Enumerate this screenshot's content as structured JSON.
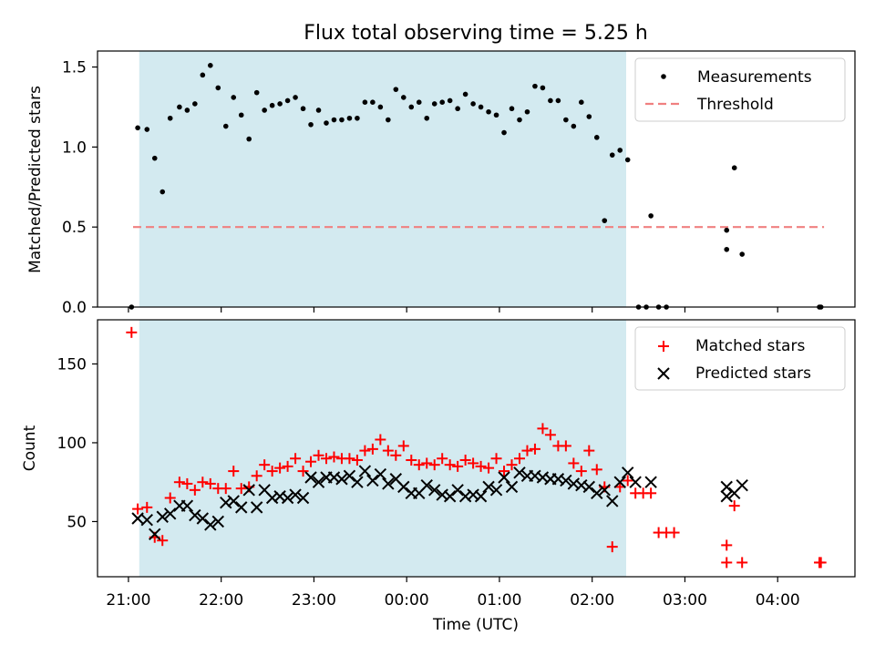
{
  "chart_data": [
    {
      "type": "scatter",
      "title": "Flux total observing time = 5.25 h",
      "xlabel": "",
      "ylabel": "Matched/Predicted stars",
      "xlim": [
        "20:40",
        "04:50"
      ],
      "ylim": [
        0,
        1.6
      ],
      "yticks": [
        0.0,
        0.5,
        1.0,
        1.5
      ],
      "ytick_labels": [
        "0.0",
        "0.5",
        "1.0",
        "1.5"
      ],
      "shaded_span": [
        "21:07",
        "02:22"
      ],
      "shaded_color": "#d3eaf0",
      "legend_position": "top-right",
      "threshold": {
        "name": "Threshold",
        "value": 0.5,
        "x_range": [
          "21:03",
          "04:30"
        ],
        "color": "#f08080",
        "style": "dashed"
      },
      "series": [
        {
          "name": "Measurements",
          "marker": "dot",
          "color": "#000000",
          "points": [
            [
              "21:02",
              0.0
            ],
            [
              "21:06",
              1.12
            ],
            [
              "21:12",
              1.11
            ],
            [
              "21:17",
              0.93
            ],
            [
              "21:22",
              0.72
            ],
            [
              "21:27",
              1.18
            ],
            [
              "21:33",
              1.25
            ],
            [
              "21:38",
              1.23
            ],
            [
              "21:43",
              1.27
            ],
            [
              "21:48",
              1.45
            ],
            [
              "21:53",
              1.51
            ],
            [
              "21:58",
              1.37
            ],
            [
              "22:03",
              1.13
            ],
            [
              "22:08",
              1.31
            ],
            [
              "22:13",
              1.2
            ],
            [
              "22:18",
              1.05
            ],
            [
              "22:23",
              1.34
            ],
            [
              "22:28",
              1.23
            ],
            [
              "22:33",
              1.26
            ],
            [
              "22:38",
              1.27
            ],
            [
              "22:43",
              1.29
            ],
            [
              "22:48",
              1.31
            ],
            [
              "22:53",
              1.24
            ],
            [
              "22:58",
              1.14
            ],
            [
              "23:03",
              1.23
            ],
            [
              "23:08",
              1.15
            ],
            [
              "23:13",
              1.17
            ],
            [
              "23:18",
              1.17
            ],
            [
              "23:23",
              1.18
            ],
            [
              "23:28",
              1.18
            ],
            [
              "23:33",
              1.28
            ],
            [
              "23:38",
              1.28
            ],
            [
              "23:43",
              1.25
            ],
            [
              "23:48",
              1.17
            ],
            [
              "23:53",
              1.36
            ],
            [
              "23:58",
              1.31
            ],
            [
              "00:03",
              1.25
            ],
            [
              "00:08",
              1.28
            ],
            [
              "00:13",
              1.18
            ],
            [
              "00:18",
              1.27
            ],
            [
              "00:23",
              1.28
            ],
            [
              "00:28",
              1.29
            ],
            [
              "00:33",
              1.24
            ],
            [
              "00:38",
              1.33
            ],
            [
              "00:43",
              1.27
            ],
            [
              "00:48",
              1.25
            ],
            [
              "00:53",
              1.22
            ],
            [
              "00:58",
              1.2
            ],
            [
              "01:03",
              1.09
            ],
            [
              "01:08",
              1.24
            ],
            [
              "01:13",
              1.17
            ],
            [
              "01:18",
              1.22
            ],
            [
              "01:23",
              1.38
            ],
            [
              "01:28",
              1.37
            ],
            [
              "01:33",
              1.29
            ],
            [
              "01:38",
              1.29
            ],
            [
              "01:43",
              1.17
            ],
            [
              "01:48",
              1.13
            ],
            [
              "01:53",
              1.28
            ],
            [
              "01:58",
              1.19
            ],
            [
              "02:03",
              1.06
            ],
            [
              "02:08",
              0.54
            ],
            [
              "02:13",
              0.95
            ],
            [
              "02:18",
              0.98
            ],
            [
              "02:23",
              0.92
            ],
            [
              "02:30",
              0.0
            ],
            [
              "02:35",
              0.0
            ],
            [
              "02:38",
              0.57
            ],
            [
              "02:43",
              0.0
            ],
            [
              "02:48",
              0.0
            ],
            [
              "03:27",
              0.36
            ],
            [
              "03:27",
              0.48
            ],
            [
              "03:32",
              0.87
            ],
            [
              "03:37",
              0.33
            ],
            [
              "04:27",
              0.0
            ],
            [
              "04:28",
              0.0
            ]
          ]
        }
      ]
    },
    {
      "type": "scatter",
      "title": "",
      "xlabel": "Time (UTC)",
      "ylabel": "Count",
      "xlim": [
        "20:40",
        "04:50"
      ],
      "ylim": [
        15,
        178
      ],
      "yticks": [
        50,
        100,
        150
      ],
      "ytick_labels": [
        "50",
        "100",
        "150"
      ],
      "xtick_labels": [
        "21:00",
        "22:00",
        "23:00",
        "00:00",
        "01:00",
        "02:00",
        "03:00",
        "04:00"
      ],
      "shaded_span": [
        "21:07",
        "02:22"
      ],
      "shaded_color": "#d3eaf0",
      "legend_position": "top-right",
      "series": [
        {
          "name": "Matched stars",
          "marker": "plus",
          "color": "#ff0000",
          "points": [
            [
              "21:02",
              170
            ],
            [
              "21:06",
              58
            ],
            [
              "21:12",
              59
            ],
            [
              "21:17",
              40
            ],
            [
              "21:22",
              38
            ],
            [
              "21:27",
              65
            ],
            [
              "21:33",
              75
            ],
            [
              "21:38",
              74
            ],
            [
              "21:43",
              70
            ],
            [
              "21:48",
              75
            ],
            [
              "21:53",
              74
            ],
            [
              "21:58",
              71
            ],
            [
              "22:03",
              71
            ],
            [
              "22:08",
              82
            ],
            [
              "22:13",
              71
            ],
            [
              "22:18",
              72
            ],
            [
              "22:23",
              79
            ],
            [
              "22:28",
              86
            ],
            [
              "22:33",
              82
            ],
            [
              "22:38",
              84
            ],
            [
              "22:43",
              85
            ],
            [
              "22:48",
              90
            ],
            [
              "22:53",
              82
            ],
            [
              "22:58",
              88
            ],
            [
              "23:03",
              92
            ],
            [
              "23:08",
              90
            ],
            [
              "23:13",
              91
            ],
            [
              "23:18",
              90
            ],
            [
              "23:23",
              90
            ],
            [
              "23:28",
              89
            ],
            [
              "23:33",
              95
            ],
            [
              "23:38",
              96
            ],
            [
              "23:43",
              102
            ],
            [
              "23:48",
              95
            ],
            [
              "23:53",
              92
            ],
            [
              "23:58",
              98
            ],
            [
              "00:03",
              89
            ],
            [
              "00:08",
              86
            ],
            [
              "00:13",
              87
            ],
            [
              "00:18",
              86
            ],
            [
              "00:23",
              90
            ],
            [
              "00:28",
              86
            ],
            [
              "00:33",
              85
            ],
            [
              "00:38",
              89
            ],
            [
              "00:43",
              87
            ],
            [
              "00:48",
              85
            ],
            [
              "00:53",
              84
            ],
            [
              "00:58",
              90
            ],
            [
              "01:03",
              82
            ],
            [
              "01:08",
              86
            ],
            [
              "01:13",
              90
            ],
            [
              "01:18",
              95
            ],
            [
              "01:23",
              96
            ],
            [
              "01:28",
              109
            ],
            [
              "01:33",
              105
            ],
            [
              "01:38",
              98
            ],
            [
              "01:43",
              98
            ],
            [
              "01:48",
              87
            ],
            [
              "01:53",
              82
            ],
            [
              "01:58",
              95
            ],
            [
              "02:03",
              83
            ],
            [
              "02:08",
              72
            ],
            [
              "02:13",
              34
            ],
            [
              "02:18",
              72
            ],
            [
              "02:23",
              76
            ],
            [
              "02:28",
              68
            ],
            [
              "02:33",
              68
            ],
            [
              "02:38",
              68
            ],
            [
              "02:43",
              43
            ],
            [
              "02:48",
              43
            ],
            [
              "02:53",
              43
            ],
            [
              "03:27",
              24
            ],
            [
              "03:27",
              35
            ],
            [
              "03:32",
              60
            ],
            [
              "03:37",
              24
            ],
            [
              "04:27",
              24
            ],
            [
              "04:28",
              24
            ]
          ]
        },
        {
          "name": "Predicted stars",
          "marker": "x",
          "color": "#000000",
          "points": [
            [
              "21:06",
              52
            ],
            [
              "21:12",
              51
            ],
            [
              "21:17",
              42
            ],
            [
              "21:22",
              53
            ],
            [
              "21:27",
              55
            ],
            [
              "21:33",
              60
            ],
            [
              "21:38",
              60
            ],
            [
              "21:43",
              54
            ],
            [
              "21:48",
              52
            ],
            [
              "21:53",
              48
            ],
            [
              "21:58",
              50
            ],
            [
              "22:03",
              62
            ],
            [
              "22:08",
              63
            ],
            [
              "22:13",
              59
            ],
            [
              "22:18",
              70
            ],
            [
              "22:23",
              59
            ],
            [
              "22:28",
              70
            ],
            [
              "22:33",
              65
            ],
            [
              "22:38",
              66
            ],
            [
              "22:43",
              65
            ],
            [
              "22:48",
              67
            ],
            [
              "22:53",
              65
            ],
            [
              "22:58",
              78
            ],
            [
              "23:03",
              75
            ],
            [
              "23:08",
              78
            ],
            [
              "23:13",
              78
            ],
            [
              "23:18",
              77
            ],
            [
              "23:23",
              79
            ],
            [
              "23:28",
              75
            ],
            [
              "23:33",
              82
            ],
            [
              "23:38",
              76
            ],
            [
              "23:43",
              80
            ],
            [
              "23:48",
              74
            ],
            [
              "23:53",
              77
            ],
            [
              "23:58",
              72
            ],
            [
              "00:03",
              68
            ],
            [
              "00:08",
              68
            ],
            [
              "00:13",
              73
            ],
            [
              "00:18",
              70
            ],
            [
              "00:23",
              67
            ],
            [
              "00:28",
              66
            ],
            [
              "00:33",
              70
            ],
            [
              "00:38",
              66
            ],
            [
              "00:43",
              67
            ],
            [
              "00:48",
              66
            ],
            [
              "00:53",
              72
            ],
            [
              "00:58",
              70
            ],
            [
              "01:03",
              78
            ],
            [
              "01:08",
              72
            ],
            [
              "01:13",
              81
            ],
            [
              "01:18",
              79
            ],
            [
              "01:23",
              79
            ],
            [
              "01:28",
              78
            ],
            [
              "01:33",
              77
            ],
            [
              "01:38",
              77
            ],
            [
              "01:43",
              76
            ],
            [
              "01:48",
              74
            ],
            [
              "01:53",
              73
            ],
            [
              "01:58",
              72
            ],
            [
              "02:03",
              68
            ],
            [
              "02:08",
              70
            ],
            [
              "02:13",
              63
            ],
            [
              "02:18",
              75
            ],
            [
              "02:23",
              81
            ],
            [
              "02:28",
              75
            ],
            [
              "02:38",
              75
            ],
            [
              "03:27",
              66
            ],
            [
              "03:27",
              72
            ],
            [
              "03:32",
              68
            ],
            [
              "03:37",
              73
            ]
          ]
        }
      ]
    }
  ]
}
